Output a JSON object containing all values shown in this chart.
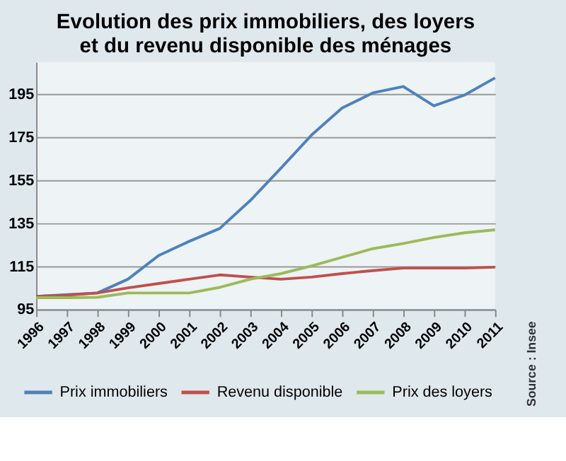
{
  "chart_data": {
    "type": "line",
    "title": "Evolution des prix immobiliers, des loyers\net du revenu disponible des ménages",
    "categories": [
      "1996",
      "1997",
      "1998",
      "1999",
      "2000",
      "2001",
      "2002",
      "2003",
      "2004",
      "2005",
      "2006",
      "2007",
      "2008",
      "2009",
      "2010",
      "2011"
    ],
    "series": [
      {
        "name": "Prix immobiliers",
        "color": "#4f81bd",
        "values": [
          101,
          101.8,
          102.6,
          109,
          120,
          126.6,
          132.6,
          145.6,
          160.6,
          176,
          188.6,
          195.6,
          198.6,
          189.6,
          194.6,
          202.6
        ]
      },
      {
        "name": "Revenu disponible",
        "color": "#c0504d",
        "values": [
          101,
          101.6,
          102.6,
          105,
          107,
          109,
          111,
          110,
          109,
          110,
          111.6,
          113,
          114.2,
          114.2,
          114.2,
          114.6
        ]
      },
      {
        "name": "Prix des loyers",
        "color": "#9bbb59",
        "values": [
          100.4,
          100.4,
          100.6,
          102.6,
          102.6,
          102.6,
          105.2,
          109,
          111.6,
          115.2,
          119.2,
          123.2,
          125.6,
          128.4,
          130.6,
          132
        ]
      }
    ],
    "ylim": [
      95,
      210
    ],
    "yticks": [
      95,
      115,
      135,
      155,
      175,
      195
    ],
    "grid": "y",
    "legend": "bottom",
    "marker": "none",
    "line_style": "solid",
    "annotations": [
      "Source : Insee"
    ]
  }
}
